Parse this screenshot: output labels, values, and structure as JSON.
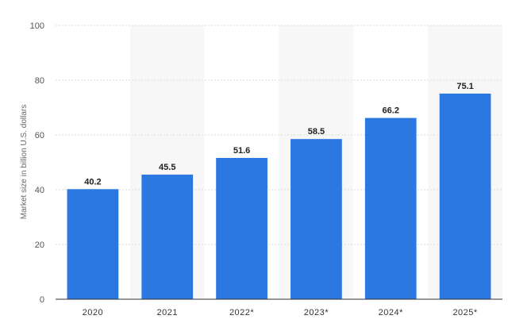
{
  "chart_data": {
    "type": "bar",
    "title": "",
    "xlabel": "",
    "ylabel": "Market size in billion U.S. dollars",
    "ylim": [
      0,
      100
    ],
    "yticks": [
      0,
      20,
      40,
      60,
      80,
      100
    ],
    "categories": [
      "2020",
      "2021",
      "2022*",
      "2023*",
      "2024*",
      "2025*"
    ],
    "values": [
      40.2,
      45.5,
      51.6,
      58.5,
      66.2,
      75.1
    ],
    "grid": true,
    "alternating_band_columns": true,
    "legend": "none",
    "colors": {
      "bar": "#2b78e0",
      "band": "#f7f7f7",
      "grid": "#dcdcdc",
      "axis": "#333333"
    }
  }
}
